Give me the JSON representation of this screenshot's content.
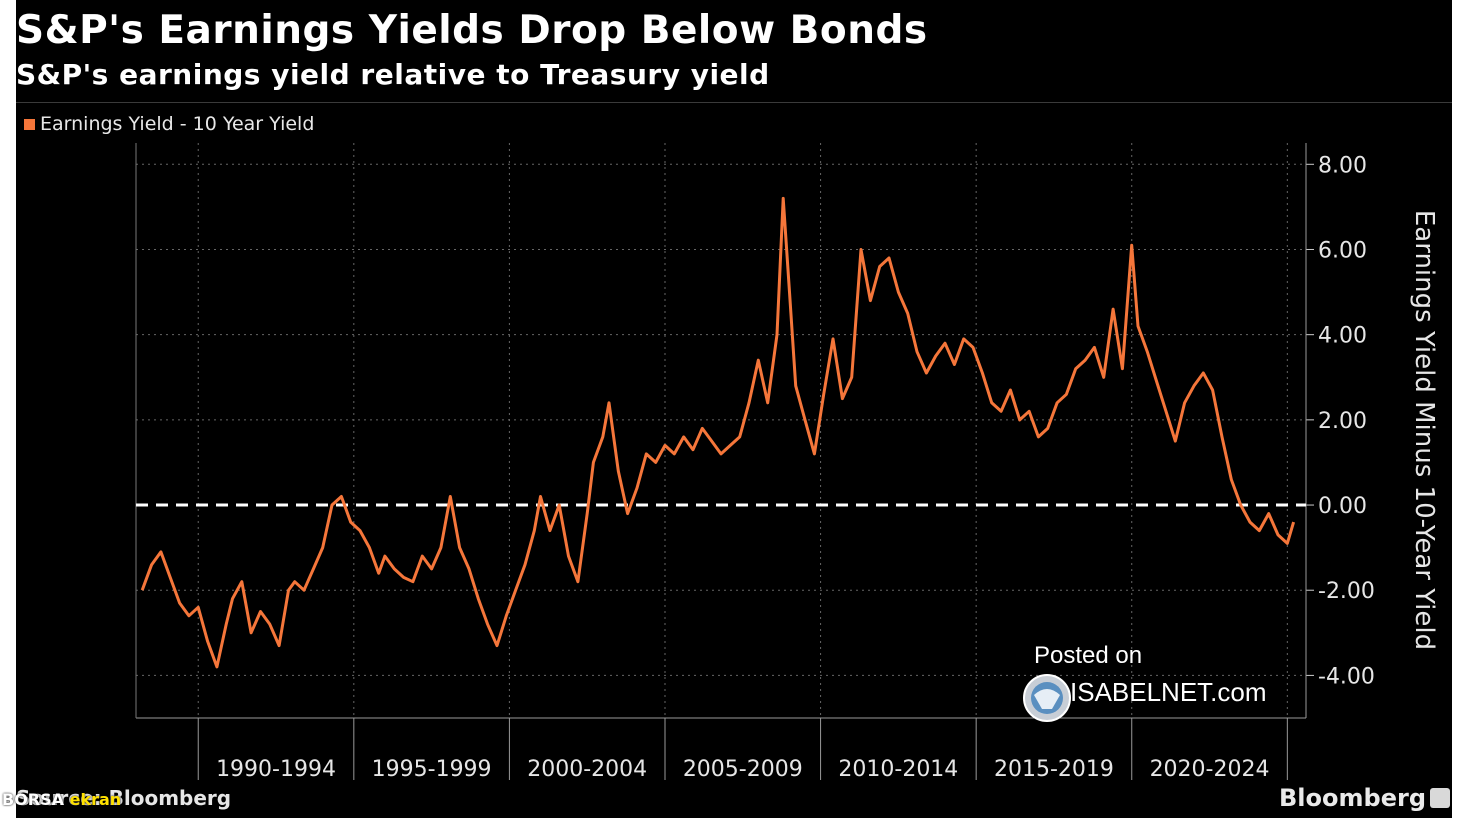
{
  "title": "S&P's Earnings Yields Drop Below Bonds",
  "subtitle": "S&P's earnings yield relative to Treasury yield",
  "source_label": "Source: Bloomberg",
  "overlay_brand": {
    "prefix": "BORSA ",
    "highlight": "ekran"
  },
  "brand": "Bloomberg",
  "watermark": {
    "line1": "Posted on",
    "line2": "ISABELNET.com"
  },
  "colors": {
    "background": "#000000",
    "series": "#f5763a",
    "zero_line": "#ffffff",
    "grid": "#666666"
  },
  "chart_data": {
    "type": "line",
    "title": "S&P's Earnings Yields Drop Below Bonds",
    "subtitle": "S&P's earnings yield relative to Treasury yield",
    "xlabel": "",
    "ylabel": "Earnings Yield Minus 10-Year Yield",
    "x_tick_labels": [
      "1990-1994",
      "1995-1999",
      "2000-2004",
      "2005-2009",
      "2010-2014",
      "2015-2019",
      "2020-2024"
    ],
    "y_ticks": [
      8,
      6,
      4,
      2,
      0,
      -2,
      -4
    ],
    "y_tick_labels": [
      "8.00",
      "6.00",
      "4.00",
      "2.00",
      "0.00",
      "-2.00",
      "-4.00"
    ],
    "ylim": [
      -5,
      8.5
    ],
    "xlim": [
      1988.0,
      2025.6
    ],
    "grid": true,
    "legend_position": "top-left",
    "reference_line": {
      "y": 0,
      "style": "dashed"
    },
    "series": [
      {
        "name": "Earnings Yield - 10 Year Yield",
        "x": [
          1988.2,
          1988.5,
          1988.8,
          1989.1,
          1989.4,
          1989.7,
          1990.0,
          1990.3,
          1990.6,
          1990.9,
          1991.1,
          1991.4,
          1991.7,
          1992.0,
          1992.3,
          1992.6,
          1992.9,
          1993.1,
          1993.4,
          1993.7,
          1994.0,
          1994.3,
          1994.6,
          1994.9,
          1995.2,
          1995.5,
          1995.8,
          1996.0,
          1996.3,
          1996.6,
          1996.9,
          1997.2,
          1997.5,
          1997.8,
          1998.1,
          1998.4,
          1998.7,
          1999.0,
          1999.3,
          1999.6,
          1999.9,
          2000.2,
          2000.5,
          2000.8,
          2001.0,
          2001.3,
          2001.6,
          2001.9,
          2002.2,
          2002.5,
          2002.7,
          2003.0,
          2003.2,
          2003.5,
          2003.8,
          2004.1,
          2004.4,
          2004.7,
          2005.0,
          2005.3,
          2005.6,
          2005.9,
          2006.2,
          2006.5,
          2006.8,
          2007.1,
          2007.4,
          2007.7,
          2008.0,
          2008.3,
          2008.6,
          2008.8,
          2009.0,
          2009.2,
          2009.5,
          2009.8,
          2010.1,
          2010.4,
          2010.7,
          2011.0,
          2011.3,
          2011.6,
          2011.9,
          2012.2,
          2012.5,
          2012.8,
          2013.1,
          2013.4,
          2013.7,
          2014.0,
          2014.3,
          2014.6,
          2014.9,
          2015.2,
          2015.5,
          2015.8,
          2016.1,
          2016.4,
          2016.7,
          2017.0,
          2017.3,
          2017.6,
          2017.9,
          2018.2,
          2018.5,
          2018.8,
          2019.1,
          2019.4,
          2019.7,
          2020.0,
          2020.2,
          2020.5,
          2020.8,
          2021.1,
          2021.4,
          2021.7,
          2022.0,
          2022.3,
          2022.6,
          2022.9,
          2023.2,
          2023.5,
          2023.8,
          2024.1,
          2024.4,
          2024.7,
          2025.0,
          2025.2
        ],
        "y": [
          -2.0,
          -1.4,
          -1.1,
          -1.7,
          -2.3,
          -2.6,
          -2.4,
          -3.2,
          -3.8,
          -2.8,
          -2.2,
          -1.8,
          -3.0,
          -2.5,
          -2.8,
          -3.3,
          -2.0,
          -1.8,
          -2.0,
          -1.5,
          -1.0,
          0.0,
          0.2,
          -0.4,
          -0.6,
          -1.0,
          -1.6,
          -1.2,
          -1.5,
          -1.7,
          -1.8,
          -1.2,
          -1.5,
          -1.0,
          0.2,
          -1.0,
          -1.5,
          -2.2,
          -2.8,
          -3.3,
          -2.6,
          -2.0,
          -1.4,
          -0.6,
          0.2,
          -0.6,
          0.0,
          -1.2,
          -1.8,
          -0.2,
          1.0,
          1.6,
          2.4,
          0.8,
          -0.2,
          0.4,
          1.2,
          1.0,
          1.4,
          1.2,
          1.6,
          1.3,
          1.8,
          1.5,
          1.2,
          1.4,
          1.6,
          2.4,
          3.4,
          2.4,
          4.0,
          7.2,
          5.0,
          2.8,
          2.0,
          1.2,
          2.6,
          3.9,
          2.5,
          3.0,
          6.0,
          4.8,
          5.6,
          5.8,
          5.0,
          4.5,
          3.6,
          3.1,
          3.5,
          3.8,
          3.3,
          3.9,
          3.7,
          3.1,
          2.4,
          2.2,
          2.7,
          2.0,
          2.2,
          1.6,
          1.8,
          2.4,
          2.6,
          3.2,
          3.4,
          3.7,
          3.0,
          4.6,
          3.2,
          6.1,
          4.2,
          3.6,
          2.9,
          2.2,
          1.5,
          2.4,
          2.8,
          3.1,
          2.7,
          1.6,
          0.6,
          0.0,
          -0.4,
          -0.6,
          -0.2,
          -0.7,
          -0.9,
          -0.4
        ]
      }
    ]
  }
}
